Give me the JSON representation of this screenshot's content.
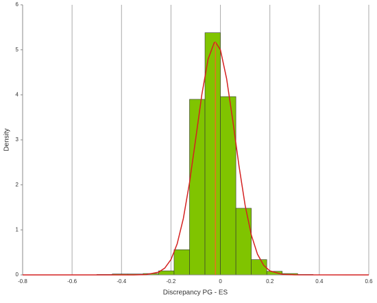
{
  "chart_data": {
    "type": "histogram",
    "xlabel": "Discrepancy PG - ES",
    "ylabel": "Density",
    "bins": [
      -0.5,
      -0.4375,
      -0.375,
      -0.3125,
      -0.25,
      -0.1875,
      -0.125,
      -0.0625,
      0,
      0.0625,
      0.125,
      0.1875,
      0.25,
      0.3125,
      0.375
    ],
    "values": [
      0.01,
      0.02,
      0.02,
      0.03,
      0.09,
      0.56,
      3.9,
      5.38,
      3.96,
      1.48,
      0.34,
      0.08,
      0.03,
      0.01
    ],
    "color": "#80c400",
    "curve": {
      "color": "#d42020",
      "x": [
        -0.8,
        -0.35,
        -0.3,
        -0.25,
        -0.225,
        -0.2,
        -0.175,
        -0.15,
        -0.125,
        -0.1,
        -0.075,
        -0.05,
        -0.025,
        -0.02,
        0,
        0.025,
        0.05,
        0.075,
        0.1,
        0.125,
        0.15,
        0.175,
        0.2,
        0.25,
        0.3,
        0.6
      ],
      "y": [
        0,
        0.0006,
        0.007,
        0.061,
        0.152,
        0.341,
        0.689,
        1.252,
        2.051,
        3.021,
        4.01,
        4.79,
        5.16,
        5.17,
        5.0,
        4.36,
        3.43,
        2.425,
        1.544,
        0.886,
        0.458,
        0.213,
        0.089,
        0.011,
        0.001,
        0
      ]
    },
    "reference_line": {
      "x": -0.02,
      "color": "#e87020"
    },
    "xlim": [
      -0.8,
      0.6
    ],
    "xticks": [
      -0.8,
      -0.6,
      -0.4,
      -0.2,
      0,
      0.2,
      0.4,
      0.6
    ],
    "ylim": [
      0,
      6
    ],
    "yticks": [
      0,
      1,
      2,
      3,
      4,
      5,
      6
    ],
    "grid": true
  }
}
